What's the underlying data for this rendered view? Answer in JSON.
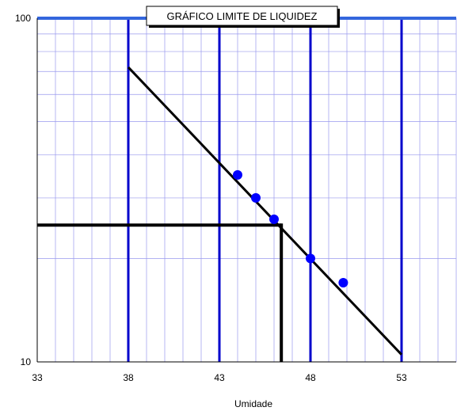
{
  "chart_data": {
    "type": "scatter",
    "title": "GRÁFICO LIMITE DE LIQUIDEZ",
    "xlabel": "Umidade",
    "ylabel": "",
    "xlim": [
      33,
      56
    ],
    "ylim": [
      10,
      100
    ],
    "y_scale": "log",
    "grid": true,
    "x_ticks": [
      33,
      38,
      43,
      48,
      53
    ],
    "y_ticks": [
      10,
      100
    ],
    "points": [
      {
        "x": 44.0,
        "y": 35
      },
      {
        "x": 45.0,
        "y": 30
      },
      {
        "x": 46.0,
        "y": 26
      },
      {
        "x": 48.0,
        "y": 20
      },
      {
        "x": 49.8,
        "y": 17
      }
    ],
    "trend_line": {
      "x": [
        38.0,
        53.0
      ],
      "y": [
        72,
        10.5
      ]
    },
    "reference": {
      "x": 46.4,
      "y": 25
    },
    "vertical_markers": [
      38,
      43,
      48,
      53
    ],
    "horizontal_marker": 100,
    "colors": {
      "points": "#0000ff",
      "markers": "#0000cc",
      "top_line": "#3366dd",
      "grid": "#9999ee",
      "lines": "#000000"
    }
  }
}
